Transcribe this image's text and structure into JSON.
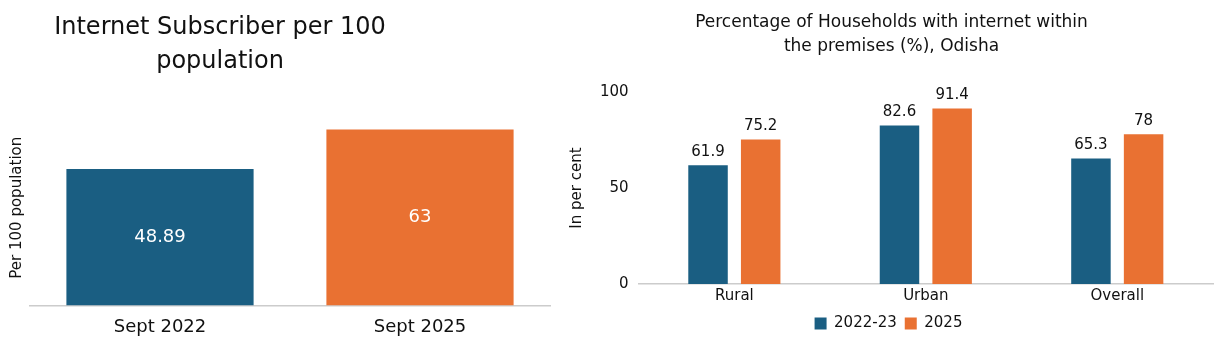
{
  "chart_data": [
    {
      "type": "bar",
      "title": "Internet Subscriber per 100 population",
      "ylabel": "Per 100 population",
      "categories": [
        "Sept 2022",
        "Sept 2025"
      ],
      "values": [
        48.89,
        63
      ],
      "colors": [
        "#1a5e82",
        "#e97132"
      ],
      "data_labels": true,
      "tick_labels": "x",
      "grid": false,
      "legend": false
    },
    {
      "type": "bar",
      "title": "Percentage of Households with internet within the premises (%), Odisha",
      "ylabel": "In per cent",
      "categories": [
        "Rural",
        "Urban",
        "Overall"
      ],
      "ylim": [
        0,
        100
      ],
      "yticks": [
        0,
        50,
        100
      ],
      "data_labels": true,
      "grid": false,
      "legend": "bottom",
      "series": [
        {
          "name": "2022-23",
          "color": "#1a5e82",
          "values": [
            61.9,
            82.6,
            65.3
          ]
        },
        {
          "name": "2025",
          "color": "#e97132",
          "values": [
            75.2,
            91.4,
            78
          ]
        }
      ]
    }
  ]
}
